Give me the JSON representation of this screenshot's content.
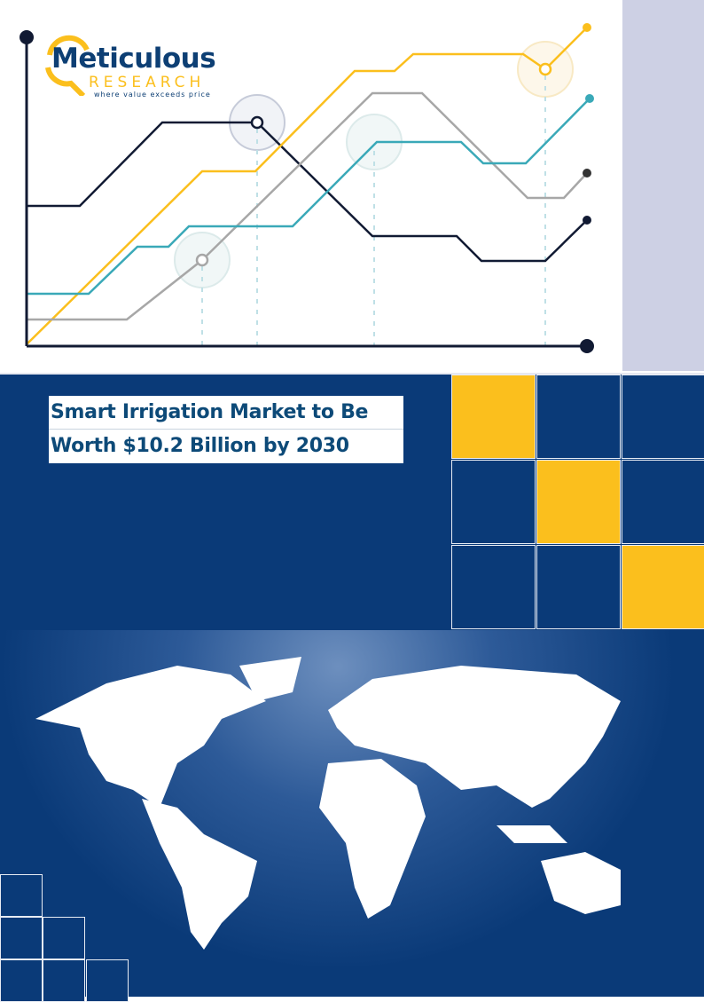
{
  "logo": {
    "name": "Meticulous",
    "sub": "RESEARCH",
    "tagline": "where value exceeds price"
  },
  "title": {
    "line1": "Smart Irrigation Market to Be",
    "line2": "Worth $10.2 Billion by 2030"
  },
  "colors": {
    "navy": "#0a3a78",
    "yellow": "#fbbf1d",
    "teal": "#3aa9b8",
    "gray": "#a7a7a7",
    "dark": "#111a33",
    "lavender": "#cdd0e4"
  },
  "icons": [
    "magnifier-logo-icon",
    "world-map-graphic"
  ]
}
